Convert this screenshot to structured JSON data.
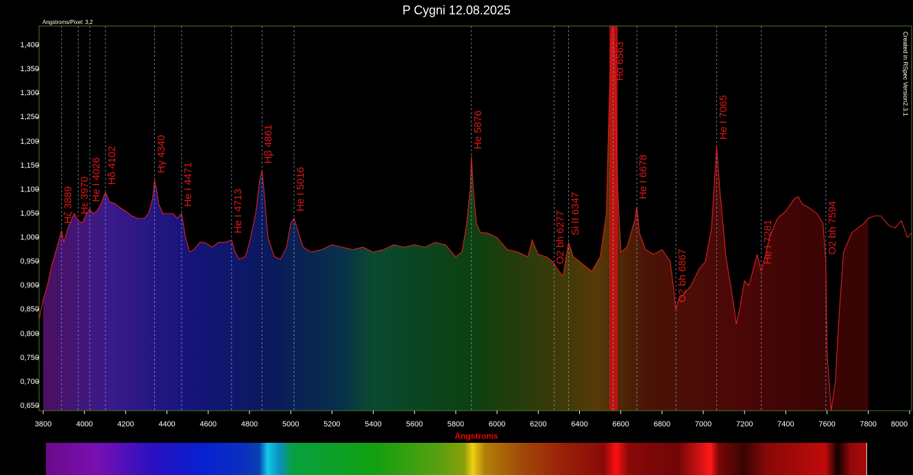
{
  "chart_data": {
    "type": "line",
    "title": "P Cygni 12.08.2025",
    "xlabel": "Angstroms",
    "ylabel": "",
    "xlim": [
      3780,
      8010
    ],
    "ylim": [
      0.64,
      1.44
    ],
    "grid": false,
    "corner_note": "Angstroms/Pixel: 3,2",
    "credit": "Created in RSpec Version2.3.1",
    "x_ticks": [
      "3800",
      "4000",
      "4200",
      "4400",
      "4600",
      "4800",
      "5000",
      "5200",
      "5400",
      "5600",
      "5800",
      "6000",
      "6200",
      "6400",
      "6600",
      "6800",
      "7000",
      "7200",
      "7400",
      "7600",
      "7800",
      "8000"
    ],
    "y_ticks": [
      "0,650",
      "0,700",
      "0,750",
      "0,800",
      "0,850",
      "0,900",
      "0,950",
      "1,000",
      "1,050",
      "1,100",
      "1,150",
      "1,200",
      "1,250",
      "1,300",
      "1,350",
      "1,400"
    ],
    "line_color": "#e02020",
    "series": [
      {
        "x": [
          3780,
          3800,
          3820,
          3840,
          3860,
          3880,
          3889,
          3900,
          3920,
          3950,
          3970,
          3990,
          4010,
          4026,
          4040,
          4060,
          4080,
          4102,
          4120,
          4150,
          4180,
          4200,
          4230,
          4260,
          4290,
          4310,
          4330,
          4340,
          4350,
          4360,
          4380,
          4400,
          4430,
          4450,
          4471,
          4490,
          4510,
          4530,
          4560,
          4580,
          4600,
          4620,
          4650,
          4680,
          4713,
          4730,
          4750,
          4780,
          4800,
          4830,
          4850,
          4861,
          4870,
          4890,
          4920,
          4950,
          4980,
          5000,
          5016,
          5030,
          5060,
          5100,
          5150,
          5200,
          5250,
          5300,
          5350,
          5400,
          5450,
          5500,
          5550,
          5600,
          5650,
          5700,
          5750,
          5800,
          5830,
          5850,
          5870,
          5876,
          5885,
          5900,
          5920,
          5950,
          6000,
          6050,
          6100,
          6150,
          6170,
          6200,
          6240,
          6270,
          6300,
          6320,
          6347,
          6370,
          6400,
          6430,
          6460,
          6500,
          6530,
          6545,
          6555,
          6563,
          6572,
          6585,
          6600,
          6630,
          6650,
          6670,
          6678,
          6690,
          6720,
          6760,
          6800,
          6840,
          6860,
          6867,
          6880,
          6900,
          6940,
          6980,
          7010,
          7040,
          7065,
          7080,
          7110,
          7140,
          7160,
          7180,
          7200,
          7220,
          7240,
          7261,
          7281,
          7300,
          7320,
          7360,
          7400,
          7440,
          7460,
          7480,
          7520,
          7550,
          7580,
          7594,
          7600,
          7620,
          7640,
          7660,
          7680,
          7700,
          7720,
          7750,
          7780,
          7800,
          7830,
          7860,
          7900,
          7930,
          7960,
          7990,
          8010
        ],
        "y": [
          0.83,
          0.87,
          0.9,
          0.94,
          0.97,
          1.0,
          1.015,
          0.99,
          1.02,
          1.05,
          1.035,
          1.03,
          1.05,
          1.06,
          1.05,
          1.055,
          1.07,
          1.095,
          1.075,
          1.07,
          1.06,
          1.055,
          1.045,
          1.04,
          1.04,
          1.05,
          1.08,
          1.12,
          1.1,
          1.07,
          1.05,
          1.05,
          1.05,
          1.04,
          1.05,
          1.0,
          0.97,
          0.975,
          0.99,
          0.99,
          0.985,
          0.98,
          0.99,
          0.99,
          0.995,
          0.97,
          0.955,
          0.96,
          0.99,
          1.05,
          1.12,
          1.14,
          1.1,
          1.0,
          0.96,
          0.955,
          0.98,
          1.03,
          1.04,
          1.02,
          0.98,
          0.97,
          0.975,
          0.985,
          0.98,
          0.975,
          0.98,
          0.97,
          0.975,
          0.985,
          0.98,
          0.985,
          0.98,
          0.99,
          0.985,
          0.96,
          0.97,
          1.02,
          1.1,
          1.17,
          1.1,
          1.03,
          1.01,
          1.01,
          1.0,
          0.975,
          0.97,
          0.96,
          0.995,
          0.965,
          0.96,
          0.95,
          0.93,
          0.92,
          0.99,
          0.96,
          0.95,
          0.94,
          0.93,
          0.96,
          1.05,
          1.3,
          1.42,
          1.44,
          1.35,
          1.1,
          0.97,
          0.98,
          1.01,
          1.04,
          1.065,
          1.01,
          0.975,
          0.965,
          0.975,
          0.95,
          0.88,
          0.85,
          0.87,
          0.88,
          0.9,
          0.935,
          0.95,
          1.02,
          1.19,
          1.1,
          0.96,
          0.88,
          0.82,
          0.86,
          0.91,
          0.9,
          0.93,
          0.965,
          0.93,
          0.96,
          1.0,
          1.04,
          1.055,
          1.08,
          1.085,
          1.07,
          1.06,
          1.05,
          1.03,
          0.95,
          0.76,
          0.64,
          0.7,
          0.85,
          0.97,
          0.99,
          1.01,
          1.02,
          1.03,
          1.04,
          1.045,
          1.045,
          1.025,
          1.02,
          1.035,
          1.0,
          1.01
        ]
      }
    ],
    "annotations": [
      {
        "x": 3889,
        "label": "Hζ  3889"
      },
      {
        "x": 3970,
        "label": "Hε  3970"
      },
      {
        "x": 4026,
        "label": "He I  4026"
      },
      {
        "x": 4102,
        "label": "Hδ 4102"
      },
      {
        "x": 4340,
        "label": "Hγ 4340"
      },
      {
        "x": 4471,
        "label": "He I  4471"
      },
      {
        "x": 4713,
        "label": "He I  4713"
      },
      {
        "x": 4861,
        "label": "Hβ 4861"
      },
      {
        "x": 5016,
        "label": "He I  5016"
      },
      {
        "x": 5876,
        "label": "He 5876"
      },
      {
        "x": 6277,
        "label": "O2 bh  6277"
      },
      {
        "x": 6347,
        "label": "Si II 6347"
      },
      {
        "x": 6563,
        "label": "Hα 6563"
      },
      {
        "x": 6678,
        "label": "He I  6678"
      },
      {
        "x": 6867,
        "label": "O2 bh  6867"
      },
      {
        "x": 7065,
        "label": "He I  7065"
      },
      {
        "x": 7281,
        "label": "He I  7281"
      },
      {
        "x": 7594,
        "label": "O2 bh  7594"
      }
    ],
    "reference_band": [
      3800,
      7800
    ]
  }
}
